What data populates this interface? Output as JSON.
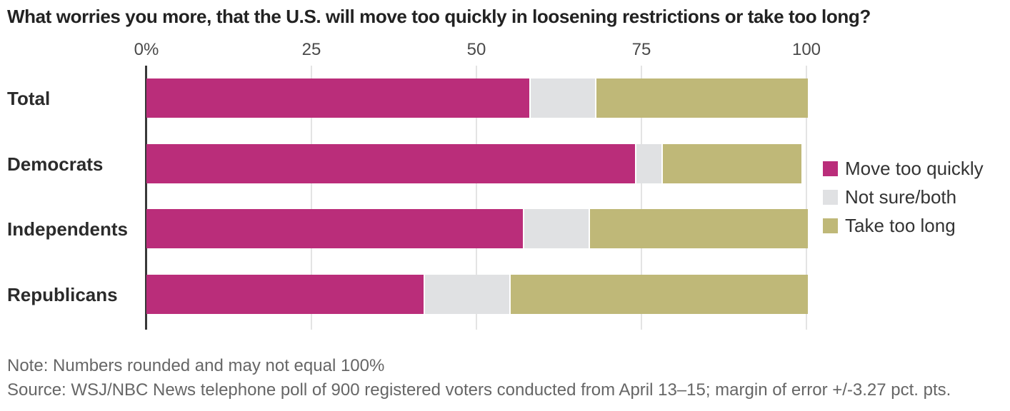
{
  "title": "What worries you more, that the U.S. will move too quickly in loosening restrictions or take too long?",
  "colors": {
    "move_too_quickly": "#ba2d7a",
    "not_sure_both": "#e0e1e3",
    "take_too_long": "#bfb878",
    "axis_line": "#383838",
    "gridline": "#e4e4e4",
    "title_text": "#222222",
    "row_label_text": "#2b2b2b",
    "tick_text": "#4a4a4a",
    "legend_text": "#333333",
    "footer_text": "#666666"
  },
  "chart_data": {
    "type": "bar",
    "orientation": "horizontal",
    "stacked": true,
    "title": "What worries you more, that the U.S. will move too quickly in loosening restrictions or take too long?",
    "categories": [
      "Total",
      "Democrats",
      "Independents",
      "Republicans"
    ],
    "series": [
      {
        "name": "Move too quickly",
        "color": "#ba2d7a",
        "values": [
          58,
          74,
          57,
          42
        ]
      },
      {
        "name": "Not sure/both",
        "color": "#e0e1e3",
        "values": [
          10,
          4,
          10,
          13
        ]
      },
      {
        "name": "Take too long",
        "color": "#bfb878",
        "values": [
          32,
          21,
          33,
          45
        ]
      }
    ],
    "x_axis": {
      "ticks": [
        "0%",
        "25",
        "50",
        "75",
        "100"
      ],
      "tick_values": [
        0,
        25,
        50,
        75,
        100
      ],
      "range": [
        0,
        100
      ],
      "unit": "percent"
    },
    "grid": true,
    "legend_position": "right"
  },
  "footer": {
    "note": "Note: Numbers rounded and may not equal 100%",
    "source": "Source: WSJ/NBC News telephone poll of 900 registered voters conducted from April 13–15; margin of error +/-3.27 pct. pts."
  }
}
